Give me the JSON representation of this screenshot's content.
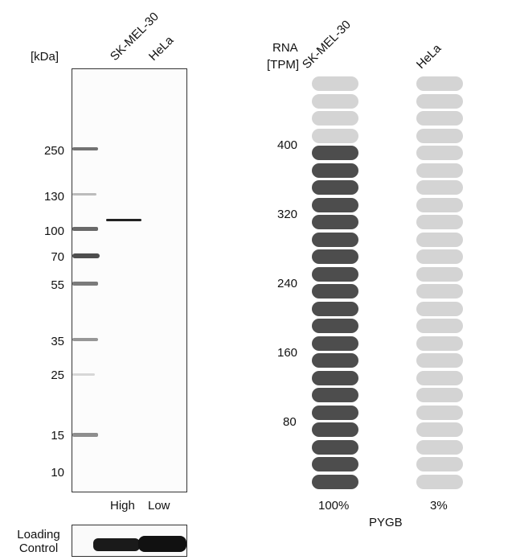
{
  "western_blot": {
    "unit_label": "[kDa]",
    "lanes": [
      "SK-MEL-30",
      "HeLa"
    ],
    "markers": [
      "250",
      "130",
      "100",
      "70",
      "55",
      "35",
      "25",
      "15",
      "10"
    ],
    "expression_labels": [
      "High",
      "Low"
    ],
    "loading_control_label": [
      "Loading",
      "Control"
    ]
  },
  "chart_data": {
    "type": "bar",
    "ylabel": [
      "RNA",
      "[TPM]"
    ],
    "yticks": [
      "400",
      "320",
      "240",
      "160",
      "80"
    ],
    "categories": [
      "SK-MEL-30",
      "HeLa"
    ],
    "percent_labels": [
      "100%",
      "3%"
    ],
    "xlabel": "PYGB",
    "values_filled_of_24": [
      20,
      0
    ],
    "total_units": 24,
    "colors": {
      "filled": "#4d4d4d",
      "empty": "#d4d4d4"
    }
  }
}
